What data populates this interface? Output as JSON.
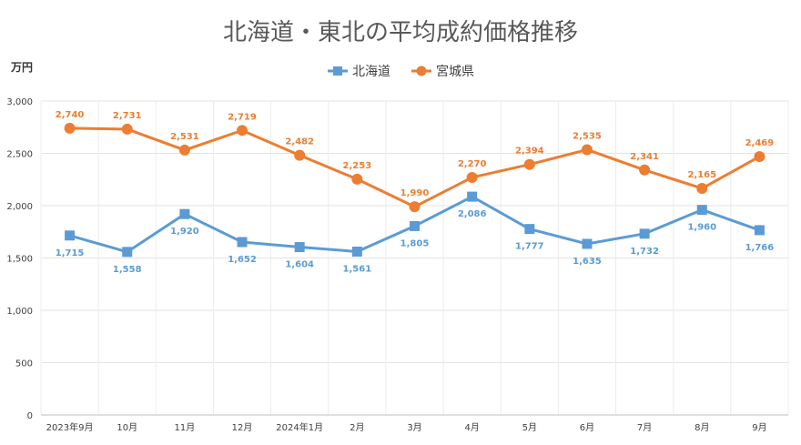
{
  "chart_data": {
    "type": "line",
    "title": "北海道・東北の平均成約価格推移",
    "ylabel": "万円",
    "xlabel": "",
    "categories": [
      "2023年9月",
      "10月",
      "11月",
      "12月",
      "2024年1月",
      "2月",
      "3月",
      "4月",
      "5月",
      "6月",
      "7月",
      "8月",
      "9月"
    ],
    "ylim": [
      0,
      3000
    ],
    "yticks": [
      "0",
      "500",
      "1,000",
      "1,500",
      "2,000",
      "2,500",
      "3,000"
    ],
    "ytick_values": [
      0,
      500,
      1000,
      1500,
      2000,
      2500,
      3000
    ],
    "grid": true,
    "legend_position": "top",
    "series": [
      {
        "name": "北海道",
        "color": "#5b9bd5",
        "marker": "square",
        "label_position": "below",
        "values": [
          1715,
          1558,
          1920,
          1652,
          1604,
          1561,
          1805,
          2086,
          1777,
          1635,
          1732,
          1960,
          1766
        ],
        "labels": [
          "1,715",
          "1,558",
          "1,920",
          "1,652",
          "1,604",
          "1,561",
          "1,805",
          "2,086",
          "1,777",
          "1,635",
          "1,732",
          "1,960",
          "1,766"
        ]
      },
      {
        "name": "宮城県",
        "color": "#ed7d31",
        "marker": "circle",
        "label_position": "above",
        "values": [
          2740,
          2731,
          2531,
          2719,
          2482,
          2253,
          1990,
          2270,
          2394,
          2535,
          2341,
          2165,
          2469
        ],
        "labels": [
          "2,740",
          "2,731",
          "2,531",
          "2,719",
          "2,482",
          "2,253",
          "1,990",
          "2,270",
          "2,394",
          "2,535",
          "2,341",
          "2,165",
          "2,469"
        ]
      }
    ]
  }
}
